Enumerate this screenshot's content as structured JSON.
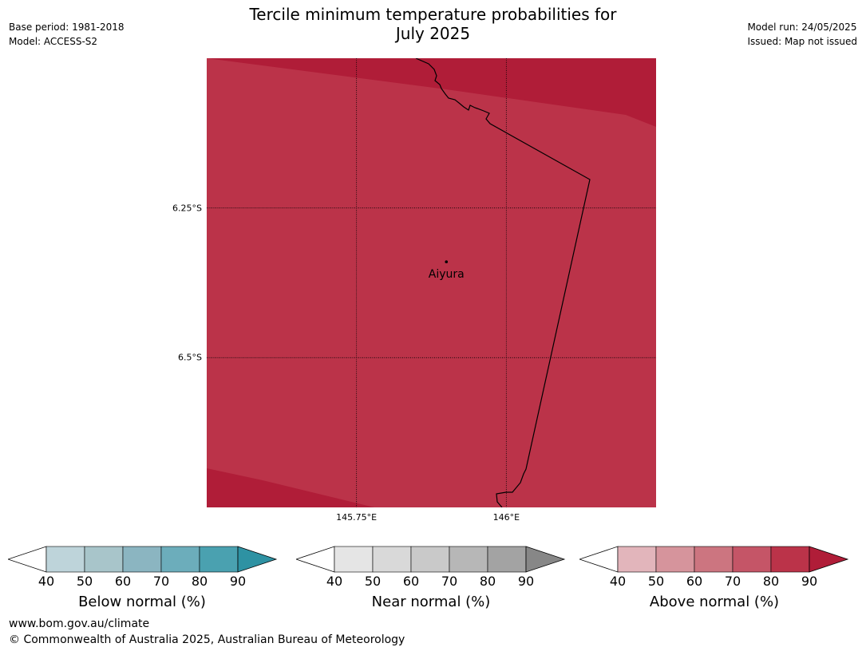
{
  "title_line1": "Tercile minimum temperature probabilities for",
  "title_line2": "July 2025",
  "meta_left": {
    "base_period": "Base period: 1981-2018",
    "model": "Model: ACCESS-S2"
  },
  "meta_right": {
    "model_run": "Model run: 24/05/2025",
    "issued": "Issued: Map not issued"
  },
  "map": {
    "lat_ticks": [
      {
        "label": "6.25°S",
        "value": -6.25
      },
      {
        "label": "6.5°S",
        "value": -6.5
      }
    ],
    "lon_ticks": [
      {
        "label": "145.75°E",
        "value": 145.75
      },
      {
        "label": "146°E",
        "value": 146.0
      }
    ],
    "place": {
      "name": "Aiyura",
      "lat": -6.34,
      "lon": 145.9
    },
    "fill_colors": {
      "band_80_90": "#bb3349",
      "band_90_plus": "#b01d38"
    },
    "border_color": "#000000"
  },
  "colorbars": [
    {
      "label": "Below normal (%)",
      "ticks": [
        "40",
        "50",
        "60",
        "70",
        "80",
        "90"
      ],
      "colors": [
        "#bed4da",
        "#a8c5ca",
        "#8bb5c1",
        "#6cadbb",
        "#4aa1b0"
      ],
      "under_color": "#ffffff",
      "over_color": "#2e92a3"
    },
    {
      "label": "Near normal (%)",
      "ticks": [
        "40",
        "50",
        "60",
        "70",
        "80",
        "90"
      ],
      "colors": [
        "#e5e5e5",
        "#d9d9d9",
        "#c9c9c9",
        "#b7b7b7",
        "#a3a3a3"
      ],
      "under_color": "#ffffff",
      "over_color": "#878787"
    },
    {
      "label": "Above normal (%)",
      "ticks": [
        "40",
        "50",
        "60",
        "70",
        "80",
        "90"
      ],
      "colors": [
        "#e2b5bb",
        "#d6949c",
        "#cc7580",
        "#c55567",
        "#bb3349"
      ],
      "under_color": "#ffffff",
      "over_color": "#b01d38"
    }
  ],
  "footer": {
    "url": "www.bom.gov.au/climate",
    "copyright": "© Commonwealth of Australia 2025, Australian Bureau of Meteorology"
  }
}
